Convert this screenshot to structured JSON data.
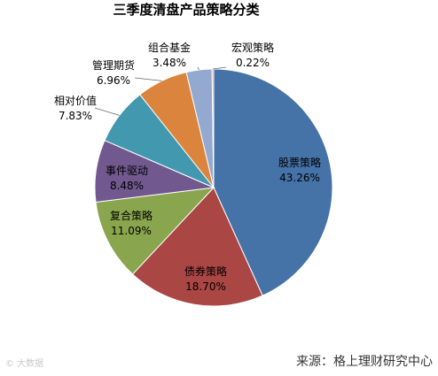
{
  "chart_data": {
    "type": "pie",
    "title": "三季度清盘产品策略分类",
    "start_angle_deg": 0,
    "direction": "clockwise",
    "slices": [
      {
        "name": "股票策略",
        "value": 43.26,
        "label": "43.26%",
        "color": "#4572A7"
      },
      {
        "name": "债券策略",
        "value": 18.7,
        "label": "18.70%",
        "color": "#AA4643"
      },
      {
        "name": "复合策略",
        "value": 11.09,
        "label": "11.09%",
        "color": "#89A54E"
      },
      {
        "name": "事件驱动",
        "value": 8.48,
        "label": "8.48%",
        "color": "#71588F"
      },
      {
        "name": "相对价值",
        "value": 7.83,
        "label": "7.83%",
        "color": "#4198AF"
      },
      {
        "name": "管理期货",
        "value": 6.96,
        "label": "6.96%",
        "color": "#DB843D"
      },
      {
        "name": "组合基金",
        "value": 3.48,
        "label": "3.48%",
        "color": "#93A9CF"
      },
      {
        "name": "宏观策略",
        "value": 0.22,
        "label": "0.22%",
        "color": "#D19392"
      }
    ]
  },
  "footer": {
    "source": "来源：格上理财研究中心",
    "watermark": "© 大数据"
  }
}
